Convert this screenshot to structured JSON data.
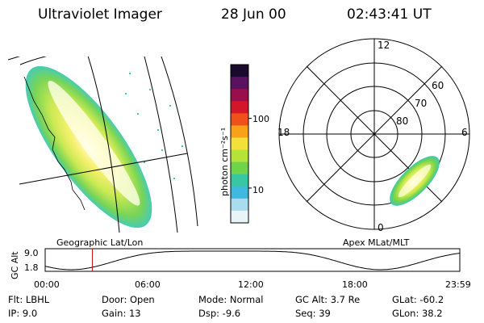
{
  "header": {
    "instrument": "Ultraviolet Imager",
    "date": "28 Jun 00",
    "time": "02:43:41 UT"
  },
  "left_panel": {
    "caption": "Geographic Lat/Lon"
  },
  "right_panel": {
    "caption": "Apex MLat/MLT",
    "mlt_labels": {
      "top": "12",
      "right": "6",
      "bottom": "0",
      "left": "18"
    },
    "lat_labels": [
      "60",
      "70",
      "80"
    ]
  },
  "colorbar": {
    "label": "photon cm⁻²s⁻¹",
    "ticks": [
      "100",
      "10"
    ],
    "colors": [
      "#1a0a2e",
      "#5b1060",
      "#9a0f4a",
      "#d4162a",
      "#f0501a",
      "#f7a21a",
      "#f2e13a",
      "#b6e33a",
      "#6fd44a",
      "#38c7a0",
      "#41b8e0",
      "#a9dcef",
      "#e8f4f8"
    ]
  },
  "altitude_strip": {
    "ylabel": "GC Alt",
    "ymax_label": "9.0",
    "ymin_label": "1.8",
    "time_ticks": [
      "00:00",
      "06:00",
      "12:00",
      "18:00",
      "23:59"
    ],
    "marker_time_hours": 2.73,
    "marker_color": "#d01010"
  },
  "info": {
    "filter": "Flt: LBHL",
    "ip": "IP:  9.0",
    "door": "Door: Open",
    "gain": "Gain: 13",
    "mode": "Mode: Normal",
    "dsp": "Dsp:    -9.6",
    "gc_alt": "GC Alt: 3.7 Re",
    "seq": "Seq: 39",
    "glat": "GLat: -60.2",
    "glon": "GLon:  38.2"
  }
}
